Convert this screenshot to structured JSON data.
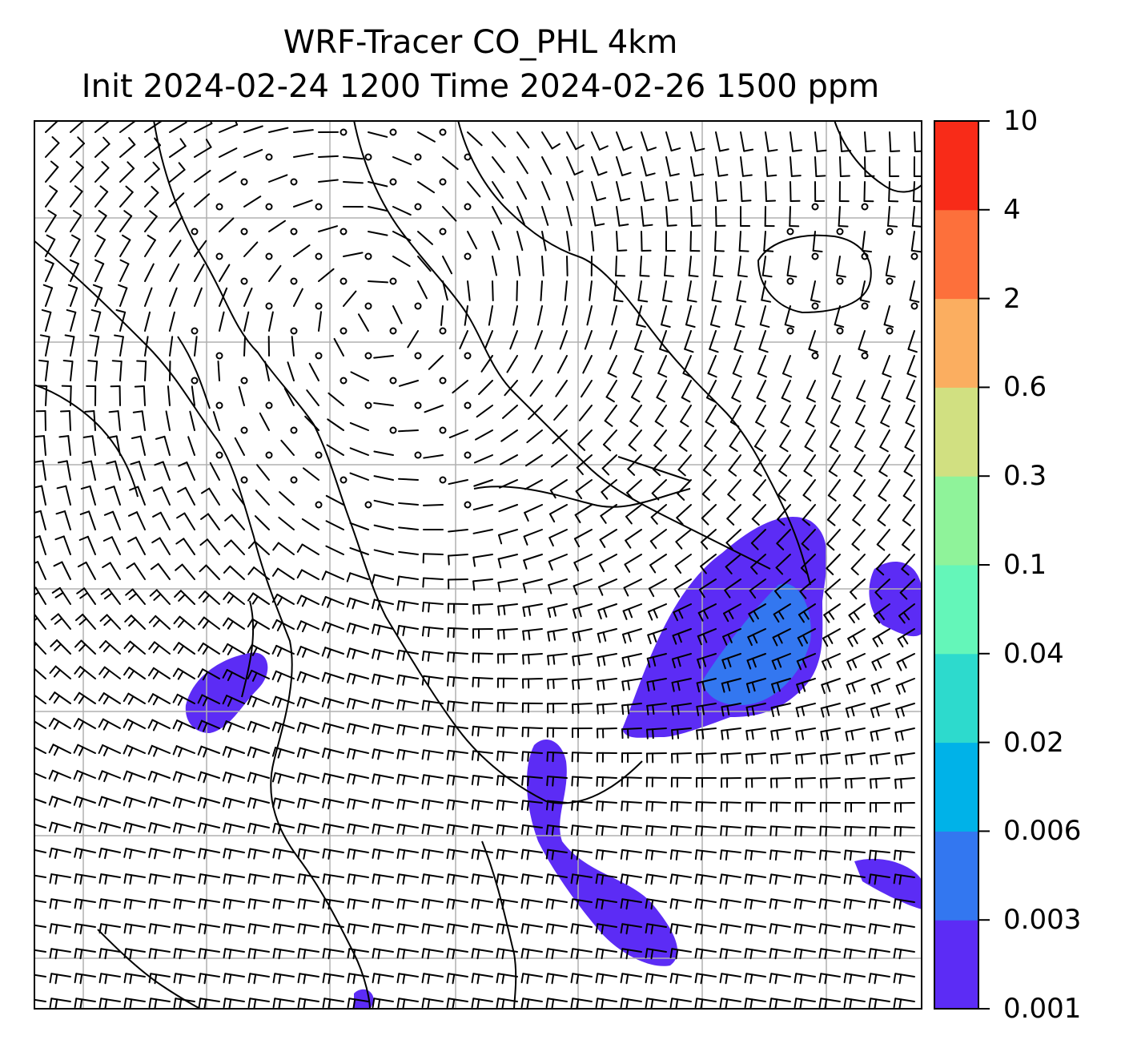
{
  "title": {
    "line1": "WRF-Tracer CO_PHL 4km",
    "line2": "Init 2024-02-24 1200 Time 2024-02-26 1500 ppm"
  },
  "colorbar": {
    "levels": [
      "0.001",
      "0.003",
      "0.006",
      "0.02",
      "0.04",
      "0.1",
      "0.3",
      "0.6",
      "2",
      "4",
      "10"
    ],
    "colors": [
      "#5c2cf5",
      "#3377f0",
      "#00b2e8",
      "#2ddacd",
      "#64f6b9",
      "#8ff39a",
      "#d1e081",
      "#fbae60",
      "#fd703b",
      "#f82b18"
    ]
  },
  "map": {
    "grid": true,
    "wind_barbs": true,
    "plume_color": "#5c2cf5",
    "plume_core_color": "#3377f0"
  }
}
